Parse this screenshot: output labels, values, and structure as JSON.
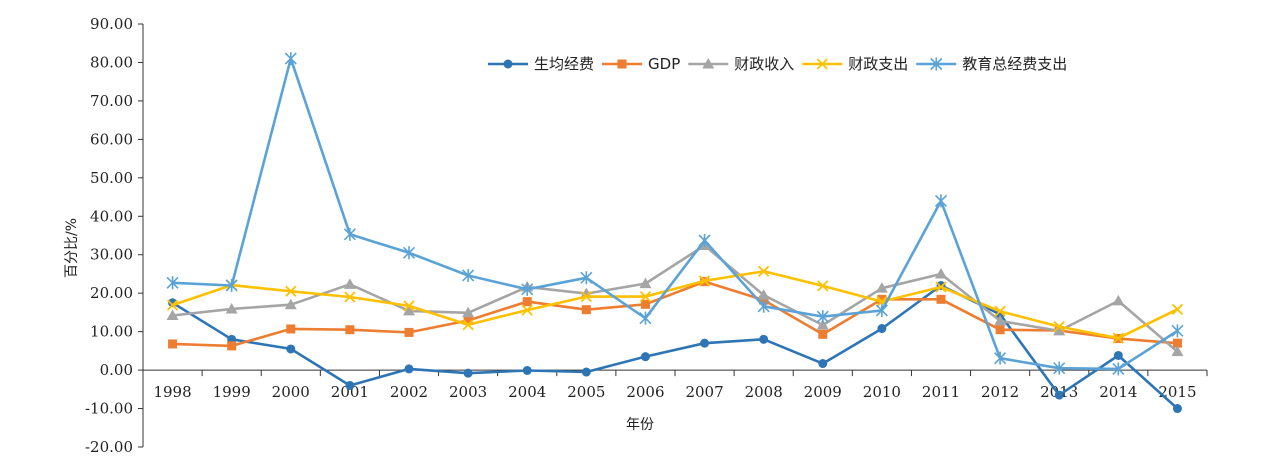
{
  "chart_data": {
    "type": "line",
    "xlabel": "年份",
    "ylabel": "百分比/%",
    "ylim": [
      -20,
      90
    ],
    "ytick_step": 10,
    "ytick_decimals": 2,
    "grid": false,
    "legend_position": "top-right",
    "categories": [
      "1998",
      "1999",
      "2000",
      "2001",
      "2002",
      "2003",
      "2004",
      "2005",
      "2006",
      "2007",
      "2008",
      "2009",
      "2010",
      "2011",
      "2012",
      "2013",
      "2014",
      "2015"
    ],
    "series": [
      {
        "name": "生均经费",
        "color": "#2e75b6",
        "marker": "circle",
        "values": [
          17.5,
          8.0,
          5.5,
          -4.0,
          0.3,
          -0.8,
          -0.1,
          -0.5,
          3.5,
          7.0,
          8.0,
          1.7,
          10.8,
          22.0,
          14.5,
          -6.5,
          3.8,
          -10.0
        ]
      },
      {
        "name": "GDP",
        "color": "#ed7d31",
        "marker": "square",
        "values": [
          6.8,
          6.3,
          10.7,
          10.5,
          9.8,
          12.9,
          17.8,
          15.7,
          17.1,
          23.0,
          18.2,
          9.3,
          18.4,
          18.4,
          10.5,
          10.3,
          8.2,
          7.0
        ]
      },
      {
        "name": "财政收入",
        "color": "#a5a5a5",
        "marker": "triangle",
        "values": [
          14.2,
          15.9,
          17.0,
          22.3,
          15.4,
          14.9,
          21.6,
          19.9,
          22.5,
          32.4,
          19.5,
          11.7,
          21.3,
          25.0,
          12.8,
          10.2,
          18.0,
          4.8
        ]
      },
      {
        "name": "财政支出",
        "color": "#ffc000",
        "marker": "x",
        "values": [
          16.9,
          22.1,
          20.5,
          19.0,
          16.7,
          11.8,
          15.6,
          19.1,
          19.1,
          23.2,
          25.7,
          21.9,
          17.8,
          21.6,
          15.3,
          11.3,
          8.3,
          15.8
        ]
      },
      {
        "name": "教育总经费支出",
        "color": "#5ba3d6",
        "marker": "star",
        "values": [
          22.7,
          22.0,
          81.0,
          35.3,
          30.5,
          24.6,
          21.0,
          24.0,
          13.5,
          33.7,
          16.6,
          13.9,
          15.5,
          44.0,
          3.1,
          0.5,
          0.3,
          10.2
        ]
      }
    ]
  }
}
